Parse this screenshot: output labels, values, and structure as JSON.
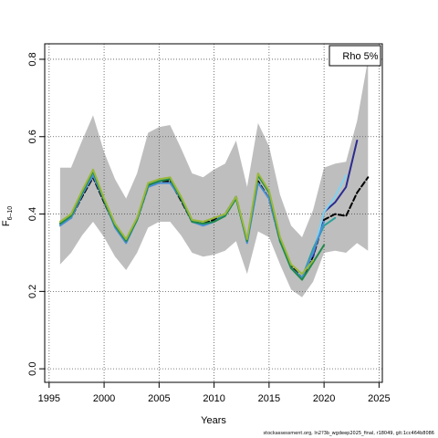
{
  "chart_data": {
    "type": "line",
    "title": "",
    "xlabel": "Years",
    "ylabel_main": "F",
    "ylabel_sub": "6–10",
    "xlim": [
      1994.6,
      2025.3
    ],
    "ylim": [
      -0.035,
      0.84
    ],
    "xticks": [
      "1995",
      "2000",
      "2005",
      "2010",
      "2015",
      "2020",
      "2025"
    ],
    "yticks": [
      "0.0",
      "0.2",
      "0.4",
      "0.6",
      "0.8"
    ],
    "grid": true,
    "legend": {
      "position": "top-right",
      "entries": [
        "Rho 5%"
      ]
    },
    "confidence_band": {
      "x": [
        1996,
        1997,
        1998,
        1999,
        2000,
        2001,
        2002,
        2003,
        2004,
        2005,
        2006,
        2007,
        2008,
        2009,
        2010,
        2011,
        2012,
        2013,
        2014,
        2015,
        2016,
        2017,
        2018,
        2019,
        2020,
        2021,
        2022,
        2023,
        2024
      ],
      "upper": [
        0.52,
        0.52,
        0.59,
        0.655,
        0.56,
        0.49,
        0.44,
        0.505,
        0.61,
        0.625,
        0.63,
        0.57,
        0.505,
        0.495,
        0.515,
        0.53,
        0.59,
        0.47,
        0.635,
        0.575,
        0.45,
        0.37,
        0.34,
        0.41,
        0.52,
        0.53,
        0.535,
        0.64,
        0.8
      ],
      "lower": [
        0.27,
        0.3,
        0.345,
        0.38,
        0.34,
        0.29,
        0.255,
        0.3,
        0.365,
        0.38,
        0.38,
        0.345,
        0.3,
        0.29,
        0.295,
        0.305,
        0.33,
        0.245,
        0.355,
        0.34,
        0.27,
        0.205,
        0.185,
        0.225,
        0.3,
        0.305,
        0.3,
        0.325,
        0.305
      ]
    },
    "years": [
      1996,
      1997,
      1998,
      1999,
      2000,
      2001,
      2002,
      2003,
      2004,
      2005,
      2006,
      2007,
      2008,
      2009,
      2010,
      2011,
      2012,
      2013,
      2014,
      2015,
      2016,
      2017,
      2018,
      2019,
      2020
    ],
    "base_values": [
      0.375,
      0.395,
      0.455,
      0.51,
      0.435,
      0.37,
      0.33,
      0.385,
      0.475,
      0.485,
      0.49,
      0.44,
      0.38,
      0.375,
      0.38,
      0.395,
      0.44,
      0.33,
      0.5,
      0.455,
      0.33,
      0.26,
      0.23,
      0.275,
      0.32
    ],
    "series": [
      {
        "color": "#000000",
        "dashed": true,
        "points": [
          [
            1996,
            0.375
          ],
          [
            1997,
            0.39
          ],
          [
            1998,
            0.445
          ],
          [
            1999,
            0.495
          ],
          [
            2000,
            0.43
          ],
          [
            2001,
            0.37
          ],
          [
            2002,
            0.33
          ],
          [
            2003,
            0.385
          ],
          [
            2004,
            0.47
          ],
          [
            2005,
            0.485
          ],
          [
            2006,
            0.485
          ],
          [
            2007,
            0.435
          ],
          [
            2008,
            0.38
          ],
          [
            2009,
            0.375
          ],
          [
            2010,
            0.385
          ],
          [
            2011,
            0.4
          ],
          [
            2012,
            0.445
          ],
          [
            2013,
            0.33
          ],
          [
            2014,
            0.485
          ],
          [
            2015,
            0.44
          ],
          [
            2016,
            0.33
          ],
          [
            2017,
            0.265
          ],
          [
            2018,
            0.235
          ],
          [
            2019,
            0.29
          ],
          [
            2020,
            0.385
          ],
          [
            2021,
            0.4
          ],
          [
            2022,
            0.395
          ],
          [
            2023,
            0.455
          ],
          [
            2024,
            0.495
          ]
        ]
      },
      {
        "color": "#2b2a8f",
        "dashed": false,
        "points": [
          [
            2019,
            0.29
          ],
          [
            2020,
            0.405
          ],
          [
            2021,
            0.43
          ],
          [
            2022,
            0.47
          ],
          [
            2023,
            0.59
          ]
        ]
      },
      {
        "color": "#7fd3f0",
        "dashed": false,
        "points": [
          [
            2019,
            0.3
          ],
          [
            2020,
            0.405
          ],
          [
            2021,
            0.445
          ],
          [
            2022,
            0.5
          ]
        ]
      },
      {
        "color": "#2aa198",
        "dashed": false,
        "points": [
          [
            2016,
            0.335
          ],
          [
            2017,
            0.26
          ],
          [
            2018,
            0.235
          ],
          [
            2019,
            0.31
          ],
          [
            2020,
            0.37
          ],
          [
            2021,
            0.39
          ]
        ]
      },
      {
        "color": "#4a8fd6",
        "dashed": false,
        "points": [
          [
            1996,
            0.37
          ],
          [
            1997,
            0.39
          ],
          [
            1998,
            0.45
          ],
          [
            1999,
            0.5
          ],
          [
            2000,
            0.435
          ],
          [
            2001,
            0.365
          ],
          [
            2002,
            0.325
          ],
          [
            2003,
            0.385
          ],
          [
            2004,
            0.47
          ],
          [
            2005,
            0.48
          ],
          [
            2006,
            0.48
          ],
          [
            2007,
            0.44
          ],
          [
            2008,
            0.38
          ],
          [
            2009,
            0.37
          ],
          [
            2010,
            0.38
          ],
          [
            2011,
            0.4
          ],
          [
            2012,
            0.445
          ],
          [
            2013,
            0.325
          ],
          [
            2014,
            0.48
          ],
          [
            2015,
            0.44
          ],
          [
            2016,
            0.33
          ],
          [
            2017,
            0.26
          ],
          [
            2018,
            0.235
          ],
          [
            2019,
            0.3
          ],
          [
            2020,
            0.38
          ]
        ]
      },
      {
        "color": "#1e8a4c",
        "dashed": false,
        "points": [
          [
            1996,
            0.375
          ],
          [
            1997,
            0.395
          ],
          [
            1998,
            0.455
          ],
          [
            1999,
            0.51
          ],
          [
            2000,
            0.435
          ],
          [
            2001,
            0.37
          ],
          [
            2002,
            0.33
          ],
          [
            2003,
            0.385
          ],
          [
            2004,
            0.475
          ],
          [
            2005,
            0.485
          ],
          [
            2006,
            0.49
          ],
          [
            2007,
            0.44
          ],
          [
            2008,
            0.38
          ],
          [
            2009,
            0.375
          ],
          [
            2010,
            0.38
          ],
          [
            2011,
            0.395
          ],
          [
            2012,
            0.44
          ],
          [
            2013,
            0.33
          ],
          [
            2014,
            0.5
          ],
          [
            2015,
            0.455
          ],
          [
            2016,
            0.33
          ],
          [
            2017,
            0.26
          ],
          [
            2018,
            0.23
          ],
          [
            2019,
            0.275
          ],
          [
            2020,
            0.32
          ]
        ]
      },
      {
        "color": "#9ab83a",
        "dashed": false,
        "points": [
          [
            1996,
            0.38
          ],
          [
            1997,
            0.4
          ],
          [
            1998,
            0.46
          ],
          [
            1999,
            0.515
          ],
          [
            2000,
            0.44
          ],
          [
            2001,
            0.375
          ],
          [
            2002,
            0.335
          ],
          [
            2003,
            0.39
          ],
          [
            2004,
            0.48
          ],
          [
            2005,
            0.49
          ],
          [
            2006,
            0.495
          ],
          [
            2007,
            0.445
          ],
          [
            2008,
            0.385
          ],
          [
            2009,
            0.38
          ],
          [
            2010,
            0.39
          ],
          [
            2011,
            0.4
          ],
          [
            2012,
            0.445
          ],
          [
            2013,
            0.335
          ],
          [
            2014,
            0.505
          ],
          [
            2015,
            0.46
          ],
          [
            2016,
            0.34
          ],
          [
            2017,
            0.27
          ],
          [
            2018,
            0.245
          ],
          [
            2019,
            0.28
          ]
        ]
      }
    ]
  },
  "footnote": "stockassessment.org, ln2?3b_wgdeep2025_final, r18049, git:1cc464b8086"
}
